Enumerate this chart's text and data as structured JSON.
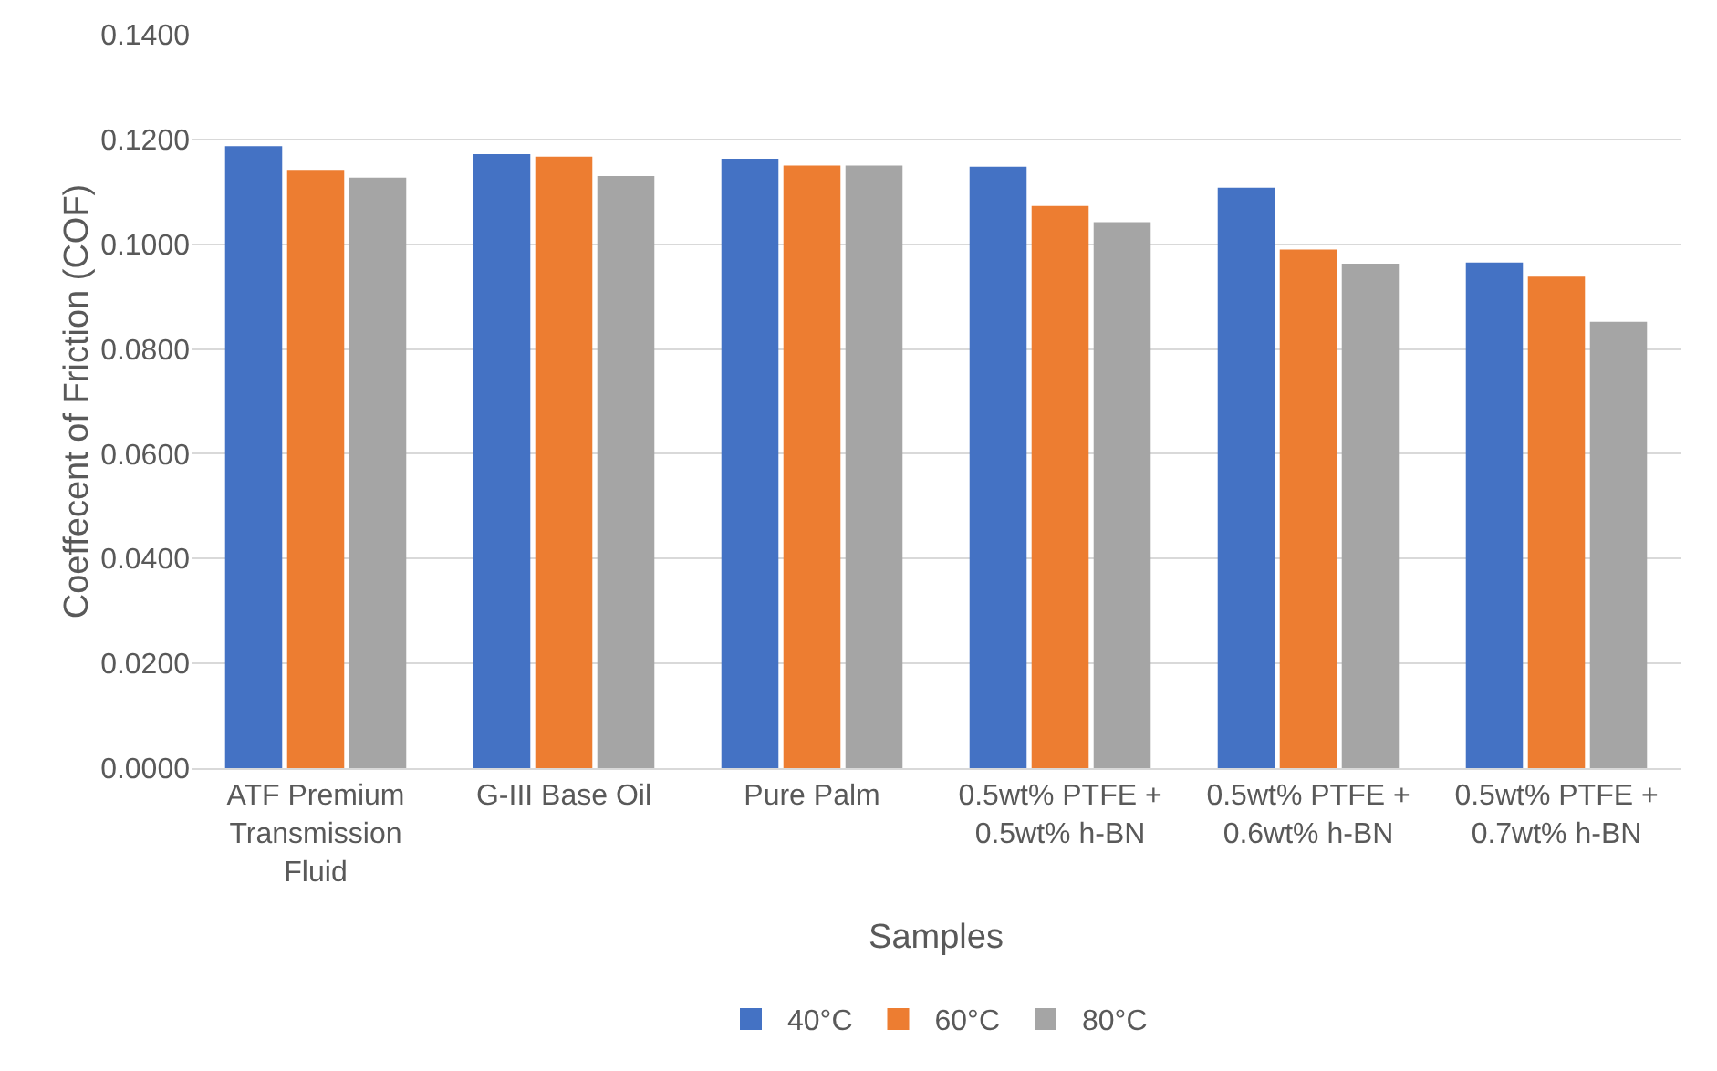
{
  "chart_data": {
    "type": "bar",
    "xlabel": "Samples",
    "ylabel": "Coeffecent of Friction (COF)",
    "categories": [
      "ATF Premium Transmission Fluid",
      "G-III Base Oil",
      "Pure Palm",
      "0.5wt% PTFE + 0.5wt% h-BN",
      "0.5wt% PTFE + 0.6wt% h-BN",
      "0.5wt% PTFE + 0.7wt% h-BN"
    ],
    "series": [
      {
        "name": "40°C",
        "color": "#4472c4",
        "values": [
          0.1187,
          0.1172,
          0.1163,
          0.1148,
          0.1108,
          0.0965
        ]
      },
      {
        "name": "60°C",
        "color": "#ed7d31",
        "values": [
          0.1142,
          0.1167,
          0.115,
          0.1073,
          0.099,
          0.0938
        ]
      },
      {
        "name": "80°C",
        "color": "#a5a5a5",
        "values": [
          0.1127,
          0.113,
          0.115,
          0.1042,
          0.0963,
          0.0852
        ]
      }
    ],
    "ylim": [
      0,
      0.14
    ],
    "yticks": [
      {
        "value": 0,
        "label": "0.0000"
      },
      {
        "value": 0.02,
        "label": "0.0200"
      },
      {
        "value": 0.04,
        "label": "0.0400"
      },
      {
        "value": 0.06,
        "label": "0.0600"
      },
      {
        "value": 0.08,
        "label": "0.0800"
      },
      {
        "value": 0.1,
        "label": "0.1000"
      },
      {
        "value": 0.12,
        "label": "0.1200"
      },
      {
        "value": 0.14,
        "label": "0.1400"
      }
    ],
    "grid": "y",
    "legend": "bottom"
  }
}
